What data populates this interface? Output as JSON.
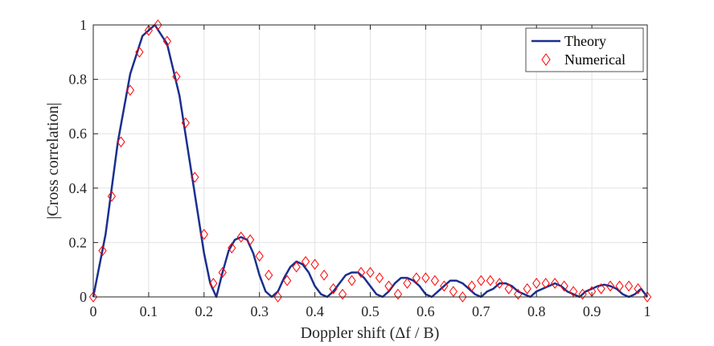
{
  "chart_data": {
    "type": "line",
    "xlabel": "Doppler shift (Δf / B)",
    "ylabel": "|Cross correlation|",
    "xlim": [
      0,
      1
    ],
    "ylim": [
      0,
      1
    ],
    "xticks": [
      0,
      0.1,
      0.2,
      0.3,
      0.4,
      0.5,
      0.6,
      0.7,
      0.8,
      0.9,
      1
    ],
    "yticks": [
      0,
      0.2,
      0.4,
      0.6,
      0.8,
      1
    ],
    "xtick_labels": [
      "0",
      "0.1",
      "0.2",
      "0.3",
      "0.4",
      "0.5",
      "0.6",
      "0.7",
      "0.8",
      "0.9",
      "1"
    ],
    "ytick_labels": [
      "0",
      "0.2",
      "0.4",
      "0.6",
      "0.8",
      "1"
    ],
    "grid": true,
    "legend_position": "top-right",
    "series": [
      {
        "name": "Theory",
        "style": "solid-line",
        "color": "#1a2f8f",
        "x": [
          0,
          0.0222,
          0.0444,
          0.0667,
          0.0889,
          0.1111,
          0.1333,
          0.1556,
          0.1778,
          0.2,
          0.2111,
          0.2222,
          0.2333,
          0.2444,
          0.2556,
          0.2667,
          0.2778,
          0.2889,
          0.3,
          0.3111,
          0.3222,
          0.3333,
          0.3444,
          0.3556,
          0.3667,
          0.3778,
          0.3889,
          0.4,
          0.4111,
          0.4222,
          0.4333,
          0.4444,
          0.4556,
          0.4667,
          0.4778,
          0.4889,
          0.5,
          0.5111,
          0.5222,
          0.5333,
          0.5444,
          0.5556,
          0.5667,
          0.5778,
          0.5889,
          0.6,
          0.6111,
          0.6222,
          0.6333,
          0.6444,
          0.6556,
          0.6667,
          0.6778,
          0.6889,
          0.7,
          0.7111,
          0.7222,
          0.7333,
          0.7444,
          0.7556,
          0.7667,
          0.7778,
          0.7889,
          0.8,
          0.8111,
          0.8222,
          0.8333,
          0.8444,
          0.8556,
          0.8667,
          0.8778,
          0.8889,
          0.9,
          0.9111,
          0.9222,
          0.9333,
          0.9444,
          0.9556,
          0.9667,
          0.9778,
          0.9889,
          1
        ],
        "y": [
          0,
          0.23,
          0.57,
          0.82,
          0.96,
          1.0,
          0.93,
          0.74,
          0.45,
          0.16,
          0.05,
          0.0,
          0.09,
          0.17,
          0.21,
          0.22,
          0.21,
          0.16,
          0.08,
          0.02,
          0.0,
          0.02,
          0.07,
          0.11,
          0.13,
          0.12,
          0.09,
          0.04,
          0.01,
          0.0,
          0.02,
          0.05,
          0.08,
          0.09,
          0.09,
          0.07,
          0.04,
          0.01,
          0.0,
          0.02,
          0.05,
          0.07,
          0.07,
          0.06,
          0.04,
          0.01,
          0.0,
          0.02,
          0.04,
          0.06,
          0.06,
          0.05,
          0.03,
          0.01,
          0.0,
          0.02,
          0.03,
          0.05,
          0.05,
          0.04,
          0.02,
          0.01,
          0.0,
          0.02,
          0.03,
          0.04,
          0.05,
          0.04,
          0.02,
          0.01,
          0.0,
          0.02,
          0.03,
          0.04,
          0.045,
          0.04,
          0.03,
          0.01,
          0.0,
          0.01,
          0.03,
          0.0
        ]
      },
      {
        "name": "Numerical",
        "style": "diamond-markers",
        "color": "#ff0000",
        "x": [
          0,
          0.0167,
          0.0333,
          0.05,
          0.0667,
          0.0833,
          0.1,
          0.1167,
          0.1333,
          0.15,
          0.1667,
          0.1833,
          0.2,
          0.2167,
          0.2333,
          0.25,
          0.2667,
          0.2833,
          0.3,
          0.3167,
          0.3333,
          0.35,
          0.3667,
          0.3833,
          0.4,
          0.4167,
          0.4333,
          0.45,
          0.4667,
          0.4833,
          0.5,
          0.5167,
          0.5333,
          0.55,
          0.5667,
          0.5833,
          0.6,
          0.6167,
          0.6333,
          0.65,
          0.6667,
          0.6833,
          0.7,
          0.7167,
          0.7333,
          0.75,
          0.7667,
          0.7833,
          0.8,
          0.8167,
          0.8333,
          0.85,
          0.8667,
          0.8833,
          0.9,
          0.9167,
          0.9333,
          0.95,
          0.9667,
          0.9833,
          1
        ],
        "y": [
          0,
          0.17,
          0.37,
          0.57,
          0.76,
          0.9,
          0.98,
          1.0,
          0.94,
          0.81,
          0.64,
          0.44,
          0.23,
          0.05,
          0.09,
          0.18,
          0.22,
          0.21,
          0.15,
          0.08,
          0.0,
          0.06,
          0.11,
          0.13,
          0.12,
          0.08,
          0.03,
          0.01,
          0.06,
          0.09,
          0.09,
          0.07,
          0.04,
          0.01,
          0.05,
          0.07,
          0.07,
          0.06,
          0.04,
          0.02,
          0.0,
          0.04,
          0.06,
          0.06,
          0.05,
          0.03,
          0.01,
          0.03,
          0.05,
          0.05,
          0.05,
          0.04,
          0.02,
          0.01,
          0.02,
          0.03,
          0.04,
          0.04,
          0.04,
          0.03,
          0.0
        ]
      }
    ]
  }
}
